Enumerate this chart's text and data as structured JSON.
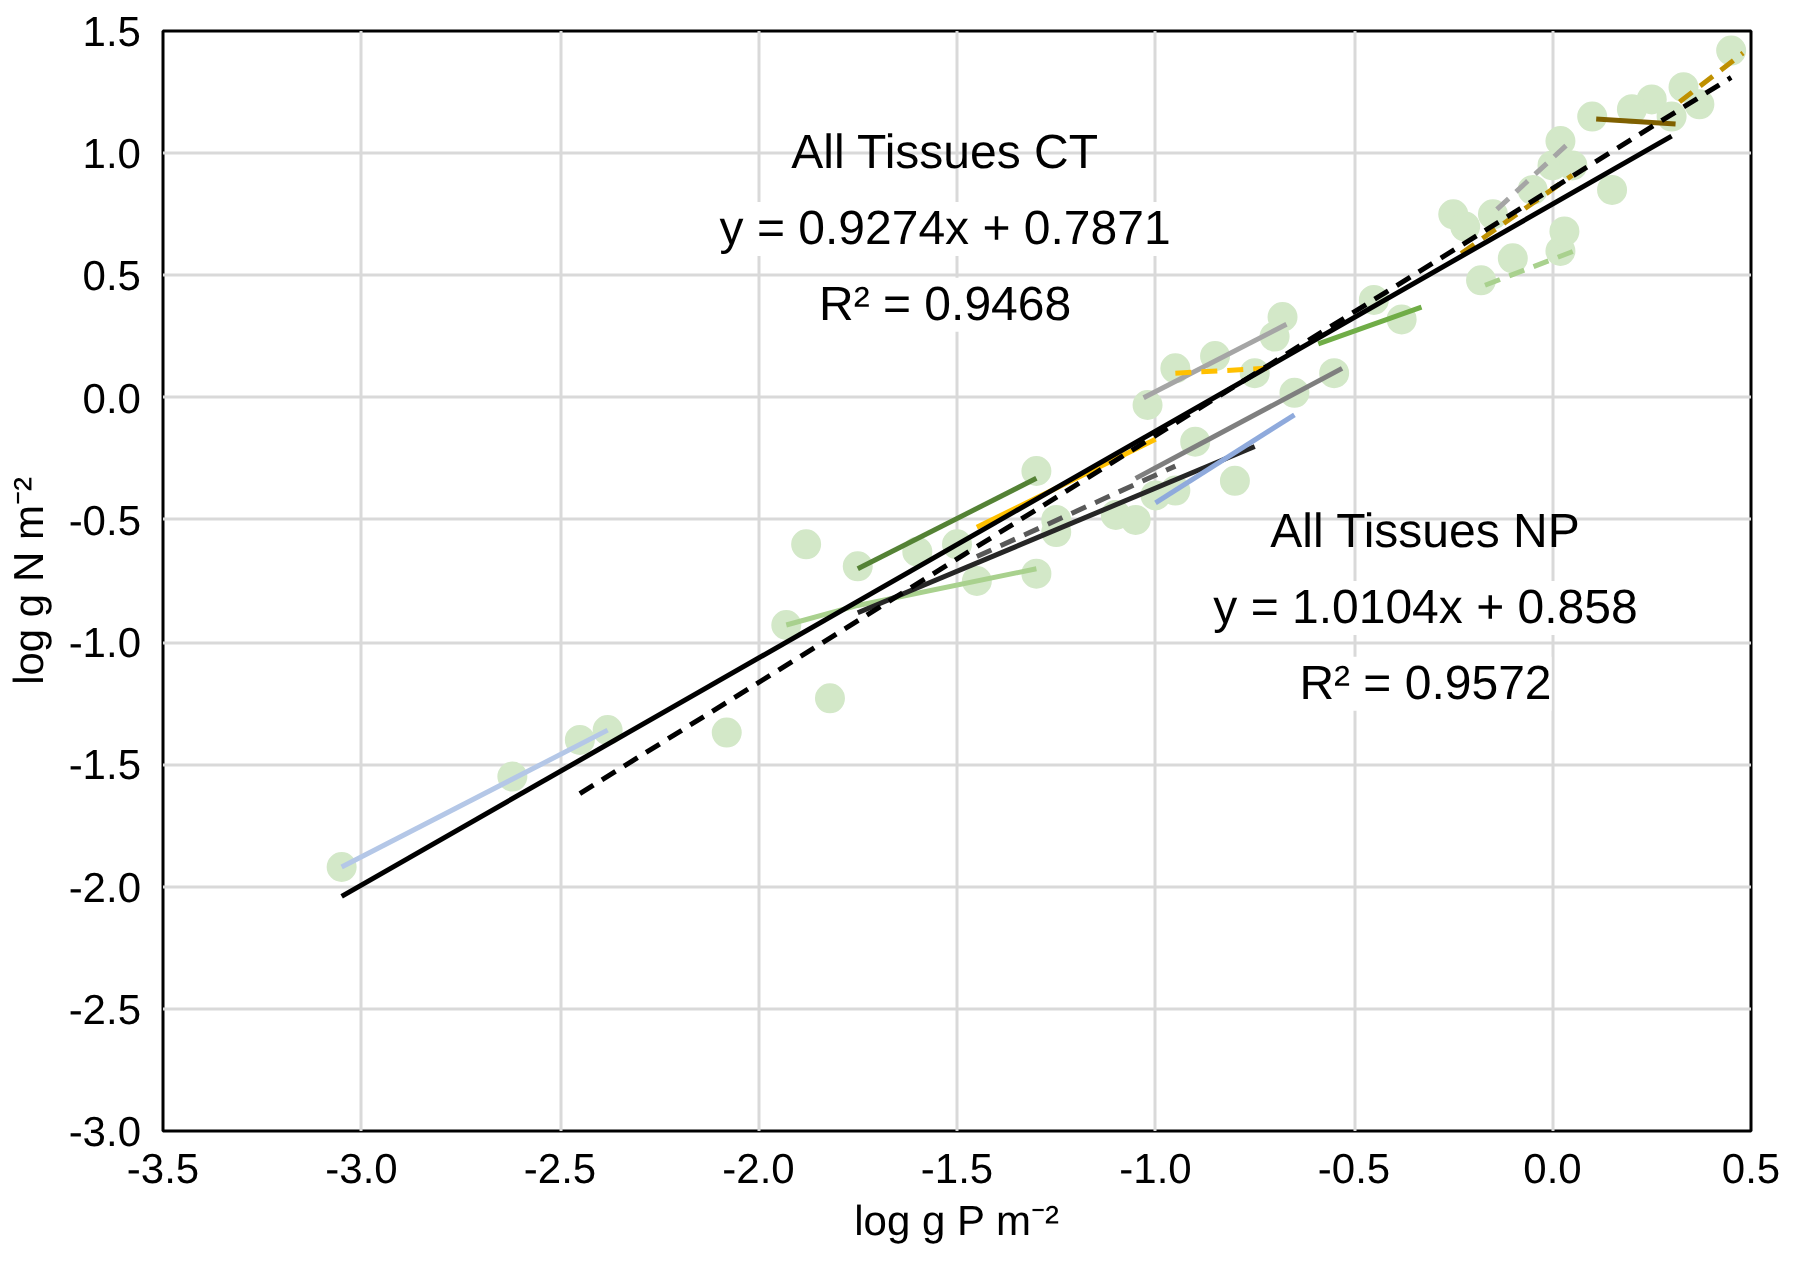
{
  "chart_data": {
    "type": "scatter",
    "xlabel": "log g P m⁻²",
    "ylabel": "log g N m⁻²",
    "xlim": [
      -3.5,
      0.5
    ],
    "ylim": [
      -3.0,
      1.5
    ],
    "xticks": [
      -3.5,
      {
        "value": -3,
        "label": "-3.0"
      },
      -2.5,
      {
        "value": -2,
        "label": "-2.0"
      },
      -1.5,
      {
        "value": -1,
        "label": "-1.0"
      },
      -0.5,
      {
        "value": 0,
        "label": "0.0"
      },
      0.5
    ],
    "yticks": [
      {
        "value": -3,
        "label": "-3.0"
      },
      -2.5,
      {
        "value": -2,
        "label": "-2.0"
      },
      -1.5,
      {
        "value": -1,
        "label": "-1.0"
      },
      -0.5,
      {
        "value": 0,
        "label": "0.0"
      },
      0.5,
      {
        "value": 1,
        "label": "1.0"
      },
      1.5
    ],
    "grid": true,
    "annotations": [
      "All Tissues CT\ny = 0.9274x + 0.7871\nR² = 0.9468",
      "All Tissues NP\ny = 1.0104x + 0.858\nR² = 0.9572"
    ],
    "series": [
      {
        "marker": "circle",
        "color": "#d3e8c8",
        "x": [
          -3.05,
          -2.62,
          -2.45,
          -2.38,
          -1.93,
          -1.88,
          -1.82,
          -1.75,
          -1.6,
          -1.5,
          -1.45,
          -1.3,
          -1.25,
          -1.1,
          -1.0,
          -0.95,
          -0.8,
          -0.9,
          -0.85,
          -0.7,
          -0.65,
          -0.55,
          -0.45,
          -0.38,
          -0.25,
          -0.05,
          0.0,
          0.1,
          0.25,
          0.2
        ],
        "values": [
          -1.92,
          -1.55,
          -1.4,
          -1.36,
          -0.93,
          -0.6,
          -1.23,
          -0.69,
          -0.63,
          -0.6,
          -0.75,
          -0.3,
          -0.5,
          -0.48,
          -0.4,
          -0.38,
          -0.34,
          -0.18,
          0.17,
          0.25,
          0.02,
          0.1,
          0.4,
          0.32,
          0.75,
          0.85,
          0.95,
          1.15,
          1.22,
          1.18
        ]
      },
      {
        "marker": "circle",
        "color": "#d3e8c8",
        "x": [
          -2.08,
          -1.3,
          -1.25,
          -1.05,
          -0.95,
          -0.75,
          -0.68,
          -1.02,
          -0.22,
          -0.18,
          -0.1,
          0.02,
          0.03,
          0.02,
          0.05,
          0.15,
          0.3,
          0.33,
          0.45,
          -0.15,
          0.37
        ],
        "values": [
          -1.37,
          -0.72,
          -0.55,
          -0.5,
          0.12,
          0.1,
          0.33,
          -0.03,
          0.7,
          0.48,
          0.57,
          0.6,
          0.68,
          1.05,
          0.95,
          0.85,
          1.15,
          1.27,
          1.42,
          0.75,
          1.2
        ]
      },
      {
        "type": "line",
        "color": "#b4c7e7",
        "x": [
          -3.05,
          -2.38
        ],
        "values": [
          -1.92,
          -1.36
        ]
      },
      {
        "type": "line",
        "color": "#a9d18e",
        "x": [
          -1.93,
          -1.75,
          -1.3
        ],
        "values": [
          -0.93,
          -0.85,
          -0.7
        ]
      },
      {
        "type": "line",
        "color": "#548235",
        "x": [
          -1.75,
          -1.3
        ],
        "values": [
          -0.7,
          -0.33
        ]
      },
      {
        "type": "line",
        "color": "#ffc000",
        "x": [
          -1.45,
          -1.0
        ],
        "values": [
          -0.53,
          -0.17
        ]
      },
      {
        "type": "line",
        "color": "#262626",
        "x": [
          -1.75,
          -0.75
        ],
        "values": [
          -0.88,
          -0.2
        ]
      },
      {
        "type": "line",
        "color": "#595959",
        "line_style": "dashed",
        "x": [
          -1.45,
          -0.95
        ],
        "values": [
          -0.65,
          -0.28
        ]
      },
      {
        "type": "line",
        "color": "#8faadc",
        "x": [
          -1.0,
          -0.65
        ],
        "values": [
          -0.43,
          -0.07
        ]
      },
      {
        "type": "line",
        "color": "#7f7f7f",
        "x": [
          -1.05,
          -0.53
        ],
        "values": [
          -0.33,
          0.12
        ]
      },
      {
        "type": "line",
        "color": "#a5a5a5",
        "x": [
          -1.03,
          -0.67
        ],
        "values": [
          0.0,
          0.3
        ]
      },
      {
        "type": "line",
        "color": "#ffc000",
        "line_style": "dashed",
        "x": [
          -0.95,
          -0.72
        ],
        "values": [
          0.1,
          0.12
        ]
      },
      {
        "type": "line",
        "color": "#70ad47",
        "x": [
          -0.59,
          -0.33
        ],
        "values": [
          0.22,
          0.37
        ]
      },
      {
        "type": "line",
        "color": "#a9d18e",
        "line_style": "dashed",
        "x": [
          -0.17,
          0.07
        ],
        "values": [
          0.46,
          0.61
        ]
      },
      {
        "type": "line",
        "color": "#bf9000",
        "line_style": "dashed",
        "x": [
          -0.23,
          0.05
        ],
        "values": [
          0.59,
          0.91
        ]
      },
      {
        "type": "line",
        "color": "#a5a5a5",
        "line_style": "dashed",
        "x": [
          -0.14,
          0.04
        ],
        "values": [
          0.77,
          1.04
        ]
      },
      {
        "type": "line",
        "color": "#7f6000",
        "x": [
          0.11,
          0.31
        ],
        "values": [
          1.14,
          1.12
        ]
      },
      {
        "type": "line",
        "color": "#bf9000",
        "line_style": "dashed",
        "x": [
          0.32,
          0.48
        ],
        "values": [
          1.21,
          1.41
        ]
      },
      {
        "type": "line",
        "color": "#000000",
        "x": [
          -3.05,
          0.3
        ],
        "values": [
          -2.04,
          1.07
        ]
      },
      {
        "type": "line",
        "color": "#000000",
        "line_style": "dashed",
        "x": [
          -2.45,
          0.45
        ],
        "values": [
          -1.62,
          1.31
        ]
      }
    ]
  }
}
